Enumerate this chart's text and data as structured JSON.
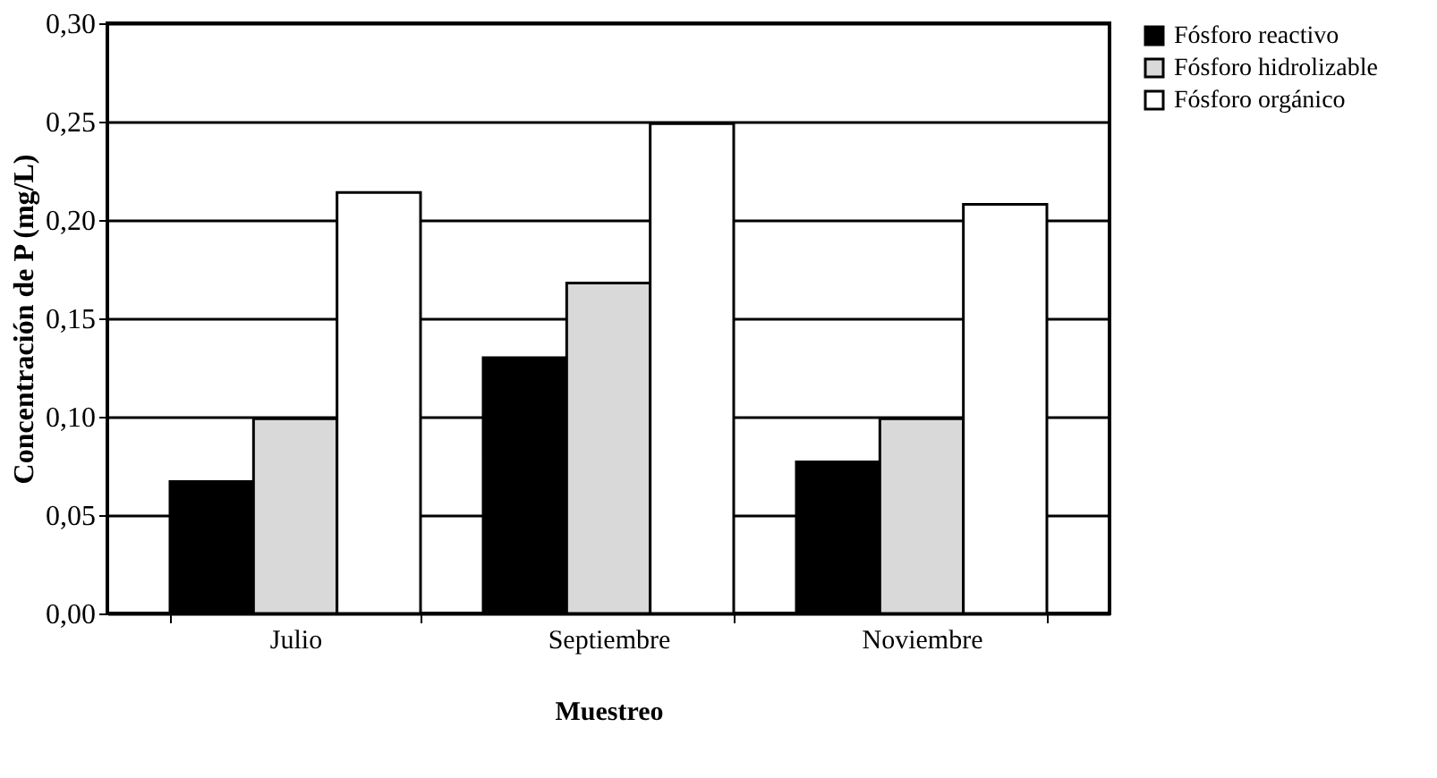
{
  "chart_data": {
    "type": "bar",
    "xlabel": "Muestreo",
    "ylabel": "Concentración de P (mg/L)",
    "categories": [
      "Julio",
      "Septiembre",
      "Noviembre"
    ],
    "series": [
      {
        "name": "Fósforo reactivo",
        "color": "#000000",
        "values": [
          0.067,
          0.13,
          0.077
        ]
      },
      {
        "name": "Fósforo hidrolizable",
        "color": "#d9d9d9",
        "values": [
          0.099,
          0.168,
          0.099
        ]
      },
      {
        "name": "Fósforo orgánico",
        "color": "#ffffff",
        "values": [
          0.214,
          0.249,
          0.208
        ]
      }
    ],
    "ylim": [
      0,
      0.3
    ],
    "yticks": [
      {
        "value": 0,
        "label": "0,00"
      },
      {
        "value": 0.05,
        "label": "0,05"
      },
      {
        "value": 0.1,
        "label": "0,10"
      },
      {
        "value": 0.15,
        "label": "0,15"
      },
      {
        "value": 0.2,
        "label": "0,20"
      },
      {
        "value": 0.25,
        "label": "0,25"
      },
      {
        "value": 0.3,
        "label": "0,30"
      }
    ],
    "grid": "y",
    "legend": "right"
  }
}
